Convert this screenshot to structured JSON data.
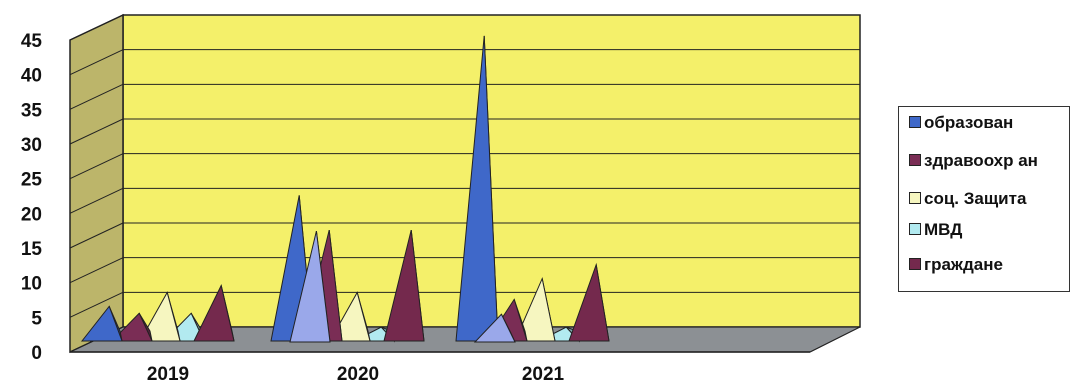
{
  "chart_data": {
    "type": "bar",
    "subtype": "3d-pyramid",
    "categories": [
      "2019",
      "2020",
      "2021"
    ],
    "ylim": [
      0,
      45
    ],
    "yticks": [
      0,
      5,
      10,
      15,
      20,
      25,
      30,
      35,
      40,
      45
    ],
    "grid": true,
    "legend_position": "right",
    "series": [
      {
        "name": "образован",
        "color": "#3f68c9",
        "values": [
          5,
          21,
          44
        ]
      },
      {
        "name": "здравоохр ан",
        "color": "#7a2d55",
        "values": [
          4,
          16,
          6
        ]
      },
      {
        "name": "соц. Защита",
        "color": "#f6f6c0",
        "values": [
          7,
          7,
          9
        ]
      },
      {
        "name": "МВД",
        "color": "#b2eaf0",
        "values": [
          4,
          2,
          2
        ]
      },
      {
        "name": "граждане",
        "color": "#74294d",
        "values": [
          8,
          16,
          11
        ]
      }
    ],
    "extra_series_2020": {
      "name": "",
      "color": "#9aa8ea",
      "values": [
        0,
        16,
        4
      ]
    },
    "wall_color": "#f4f06a",
    "side_wall_color": "#bcb56a",
    "floor_color": "#8c9094"
  },
  "legend": {
    "items": [
      {
        "label": "образован",
        "color": "#3f68c9"
      },
      {
        "label": "здравоохр ан",
        "color": "#7a2d55"
      },
      {
        "label": "соц. Защита",
        "color": "#f6f6c0"
      },
      {
        "label": "МВД",
        "color": "#b2eaf0"
      },
      {
        "label": "граждане",
        "color": "#74294d"
      }
    ]
  }
}
